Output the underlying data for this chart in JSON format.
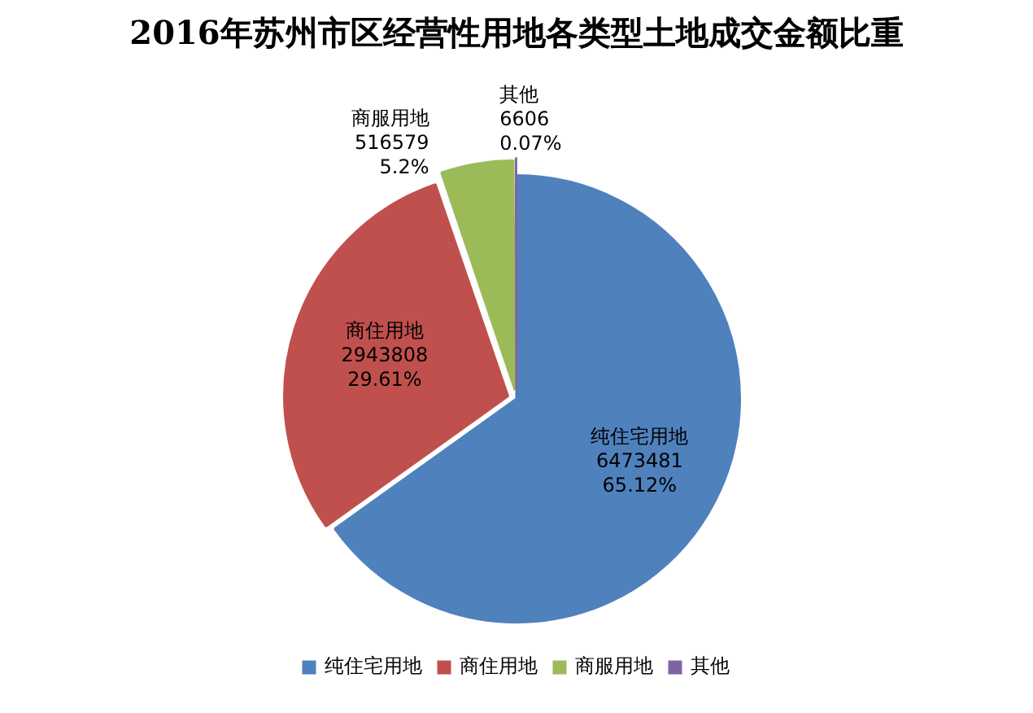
{
  "chart_data": {
    "type": "pie",
    "title": "2016年苏州市区经营性用地各类型土地成交金额比重",
    "categories": [
      "纯住宅用地",
      "商住用地",
      "商服用地",
      "其他"
    ],
    "values": [
      6473481,
      2943808,
      516579,
      6606
    ],
    "colors": [
      "#4f81bd",
      "#c0504d",
      "#9bbb59",
      "#8064a2"
    ],
    "value_labels": [
      "6473481\n65.12%",
      "2943808\n29.61%",
      "516579\n5.2%",
      "6606\n0.07%"
    ],
    "legend": "bottom"
  }
}
